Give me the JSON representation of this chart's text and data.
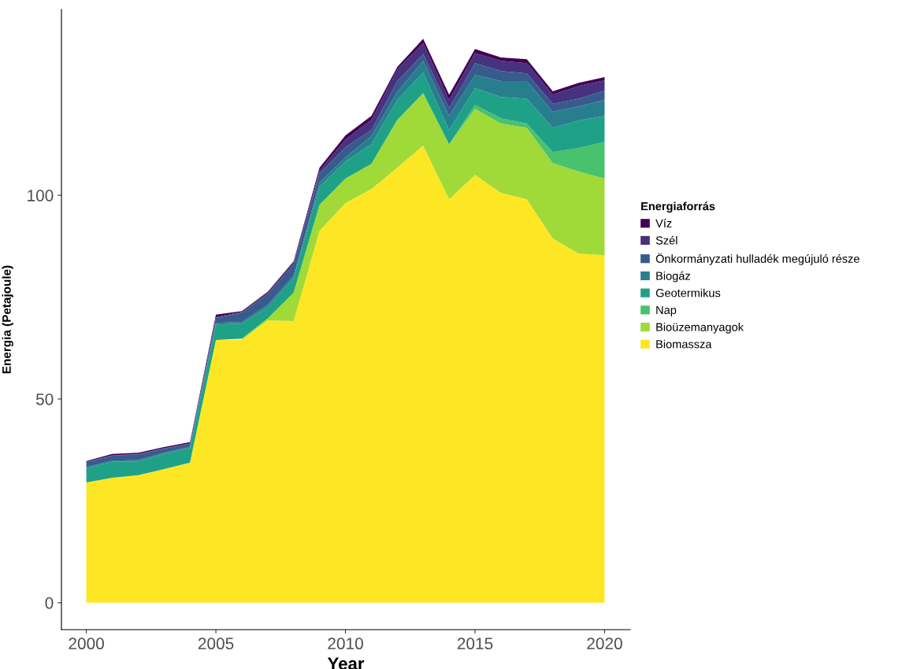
{
  "chart_data": {
    "type": "area",
    "stacked": true,
    "xlabel": "Year",
    "ylabel": "Energia (Petajoule)",
    "legend_title": "Energiaforrás",
    "legend": "right",
    "x": [
      2000,
      2001,
      2002,
      2003,
      2004,
      2005,
      2006,
      2007,
      2008,
      2009,
      2010,
      2011,
      2012,
      2013,
      2014,
      2015,
      2016,
      2017,
      2018,
      2019,
      2020
    ],
    "xlim": [
      1999.04,
      2020.99
    ],
    "xticks": [
      2000,
      2005,
      2010,
      2015,
      2020
    ],
    "ylim": [
      -6.6,
      145.6
    ],
    "yticks": [
      0,
      50,
      100
    ],
    "grid": false,
    "series": [
      {
        "name": "Biomassza",
        "color": "#fde725",
        "values": [
          29.5,
          30.7,
          31.3,
          32.8,
          34.4,
          64.5,
          64.5,
          69.3,
          69.1,
          91.3,
          98.1,
          101.5,
          106.8,
          112.2,
          99.0,
          105.0,
          100.6,
          99.0,
          89.4,
          85.7,
          85.3
        ]
      },
      {
        "name": "Bioüzemanyagok",
        "color": "#a0da39",
        "values": [
          null,
          null,
          null,
          null,
          null,
          null,
          0.3,
          0.5,
          7.0,
          6.4,
          6.0,
          6.2,
          11.7,
          12.9,
          13.5,
          16.2,
          17.0,
          17.6,
          18.5,
          20.1,
          18.8
        ]
      },
      {
        "name": "Nap",
        "color": "#4ac16d",
        "values": [
          null,
          null,
          null,
          null,
          null,
          null,
          null,
          null,
          null,
          null,
          null,
          null,
          null,
          null,
          0,
          1.0,
          1.3,
          1.0,
          2.7,
          5.8,
          9.0
        ]
      },
      {
        "name": "Geotermikus",
        "color": "#1fa187",
        "values": [
          3.5,
          3.9,
          3.4,
          3.7,
          3.6,
          3.8,
          3.7,
          2.8,
          3.6,
          4.4,
          4.2,
          4.8,
          4.9,
          5.0,
          3.5,
          4.1,
          5.2,
          6.1,
          6.0,
          6.7,
          6.4
        ]
      },
      {
        "name": "Biogáz",
        "color": "#277f8e",
        "values": [
          0.3,
          0.3,
          0.3,
          0.3,
          0.3,
          0.4,
          0.4,
          0.5,
          0.6,
          1.0,
          1.0,
          2.0,
          1.9,
          2.9,
          3.5,
          3.2,
          3.9,
          4.3,
          3.9,
          3.5,
          3.9
        ]
      },
      {
        "name": "Önkormányzati hulladék megújuló része",
        "color": "#365c8d",
        "values": [
          1.2,
          1.2,
          1.4,
          1.0,
          0.7,
          1.2,
          2.3,
          2.6,
          2.7,
          2.3,
          2.5,
          1.5,
          2.7,
          1.7,
          1.9,
          2.9,
          2.5,
          1.9,
          1.9,
          1.9,
          2.3
        ]
      },
      {
        "name": "Szél",
        "color": "#46327e",
        "values": [
          0.1,
          0.1,
          0.1,
          0.1,
          0.1,
          0.2,
          0.2,
          0.3,
          0.5,
          0.6,
          1.9,
          2.5,
          2.9,
          2.6,
          2.0,
          2.5,
          2.5,
          2.5,
          2.3,
          3.1,
          2.5
        ]
      },
      {
        "name": "Víz",
        "color": "#440154",
        "values": [
          0.2,
          0.3,
          0.3,
          0.3,
          0.3,
          0.6,
          0.2,
          0.3,
          0.3,
          0.8,
          1.0,
          1.0,
          0.6,
          1.1,
          1.3,
          1.0,
          0.8,
          1.0,
          0.8,
          0.8,
          0.8
        ]
      }
    ]
  }
}
